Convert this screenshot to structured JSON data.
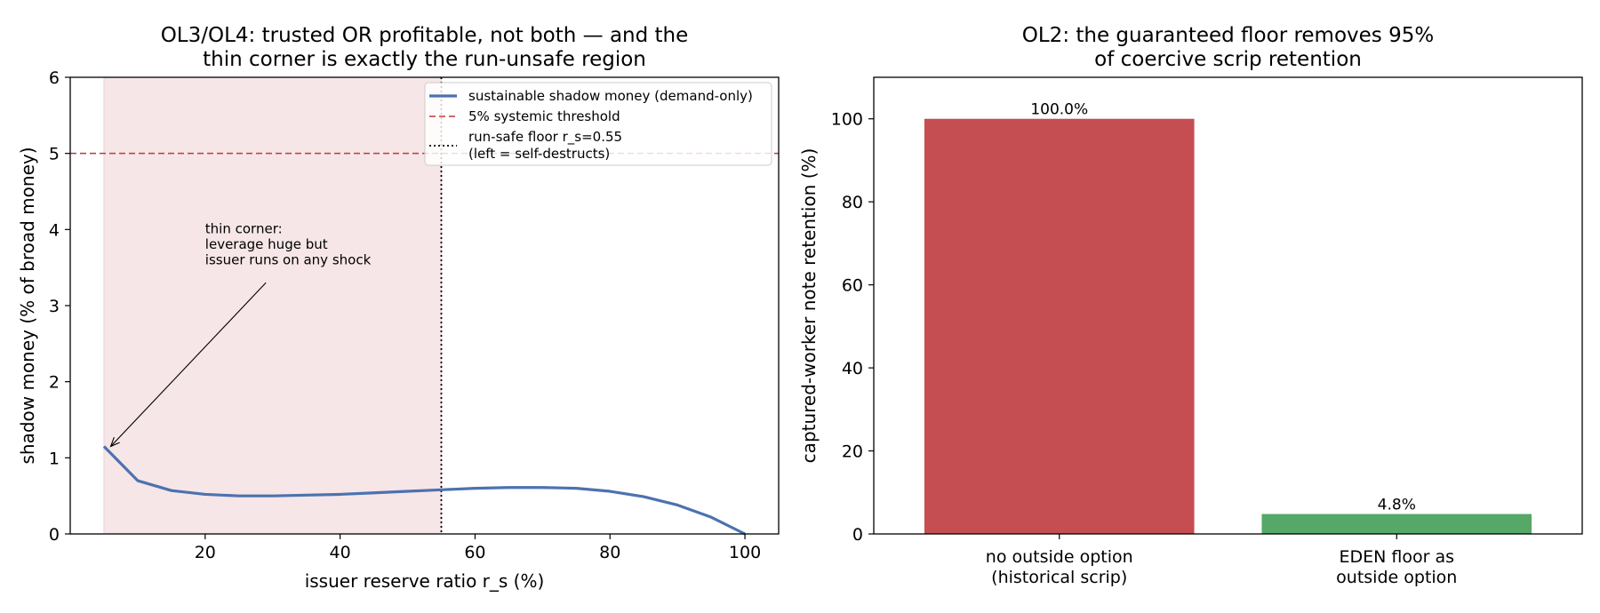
{
  "chart_data": [
    {
      "type": "line",
      "title_lines": [
        "OL3/OL4: trusted OR profitable, not both — and the",
        "thin corner is exactly the run-unsafe region"
      ],
      "xlabel": "issuer reserve ratio r_s (%)",
      "ylabel": "shadow money (% of broad money)",
      "xlim": [
        0,
        105
      ],
      "ylim": [
        0,
        6
      ],
      "xticks": [
        20,
        40,
        60,
        80,
        100
      ],
      "yticks": [
        0,
        1,
        2,
        3,
        4,
        5,
        6
      ],
      "grid": false,
      "legend_position": "top-right",
      "shaded_region": {
        "x_from": 5,
        "x_to": 55,
        "color": "#f6e6e8"
      },
      "series": [
        {
          "name": "sustainable shadow money (demand-only)",
          "color": "#4c72b0",
          "x": [
            5,
            10,
            15,
            20,
            25,
            30,
            35,
            40,
            45,
            50,
            55,
            60,
            65,
            70,
            75,
            80,
            85,
            90,
            95,
            100
          ],
          "y": [
            1.15,
            0.7,
            0.57,
            0.52,
            0.5,
            0.5,
            0.51,
            0.52,
            0.54,
            0.56,
            0.58,
            0.6,
            0.61,
            0.61,
            0.6,
            0.56,
            0.49,
            0.38,
            0.22,
            0.0
          ]
        }
      ],
      "reference_lines": [
        {
          "name": "5% systemic threshold",
          "orientation": "horizontal",
          "value": 5,
          "style": "dashed",
          "color": "#c0393b"
        },
        {
          "name_lines": [
            "run-safe floor r_s=0.55",
            "(left = self-destructs)"
          ],
          "orientation": "vertical",
          "value": 55,
          "style": "dotted",
          "color": "#000000"
        }
      ],
      "annotation": {
        "lines": [
          "thin corner:",
          "leverage huge but",
          "issuer runs on any shock"
        ],
        "text_at": [
          20,
          3.95
        ],
        "arrow_from": [
          29,
          3.3
        ],
        "arrow_to": [
          6,
          1.15
        ]
      }
    },
    {
      "type": "bar",
      "title_lines": [
        "OL2: the guaranteed floor removes 95%",
        "of coercive scrip retention"
      ],
      "categories": [
        [
          "no outside option",
          "(historical scrip)"
        ],
        [
          "EDEN floor as",
          "outside option"
        ]
      ],
      "values": [
        100.0,
        4.8
      ],
      "data_labels": [
        "100.0%",
        "4.8%"
      ],
      "colors": [
        "#c44e52",
        "#55a868"
      ],
      "xlabel": "",
      "ylabel": "captured-worker note retention (%)",
      "ylim": [
        0,
        110
      ],
      "yticks": [
        0,
        20,
        40,
        60,
        80,
        100
      ],
      "grid": false
    }
  ]
}
